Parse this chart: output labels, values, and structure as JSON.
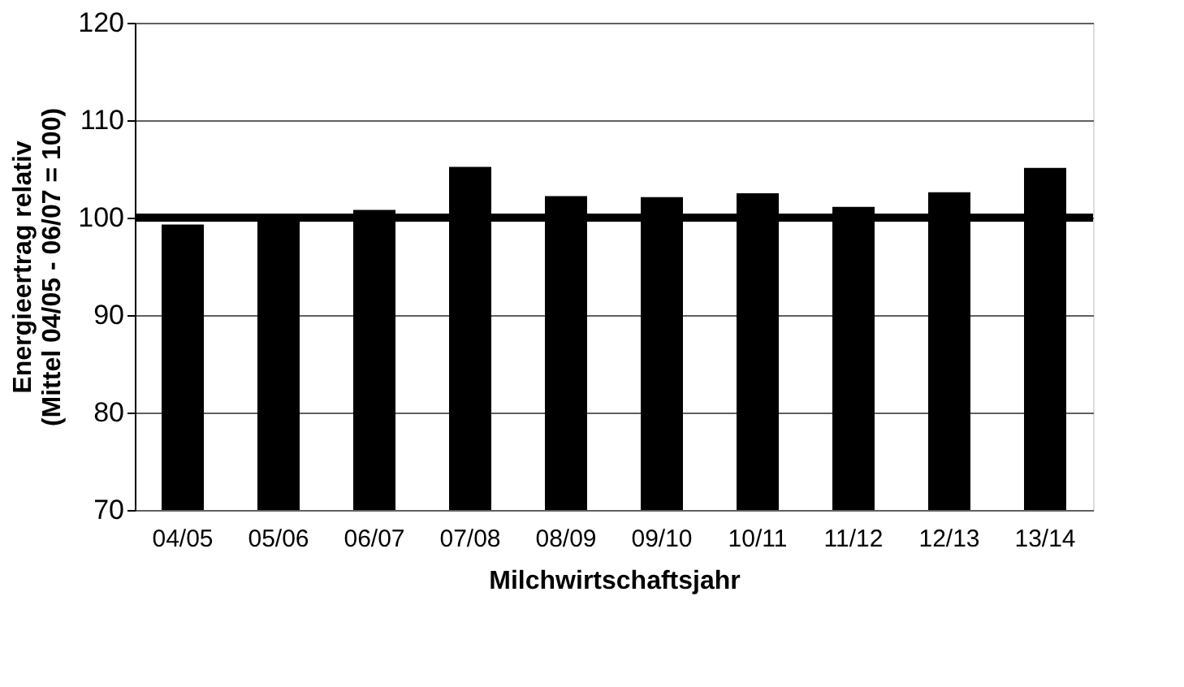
{
  "chart_data": {
    "type": "bar",
    "xlabel": "Milchwirtschaftsjahr",
    "ylabel": [
      "Energieertrag relativ",
      "(Mittel 04/05 - 06/07 = 100)"
    ],
    "categories": [
      "04/05",
      "05/06",
      "06/07",
      "07/08",
      "08/09",
      "09/10",
      "10/11",
      "11/12",
      "12/13",
      "13/14"
    ],
    "values": [
      99.3,
      100.2,
      100.8,
      105.2,
      102.2,
      102.1,
      102.5,
      101.1,
      102.6,
      105.1
    ],
    "color": "#000000",
    "ylim": [
      70,
      120
    ],
    "yticks": [
      70,
      80,
      90,
      100,
      110,
      120
    ],
    "grid": "y",
    "ref_lines": [
      {
        "axis": "y",
        "value": 100,
        "color": "#000000"
      }
    ]
  }
}
